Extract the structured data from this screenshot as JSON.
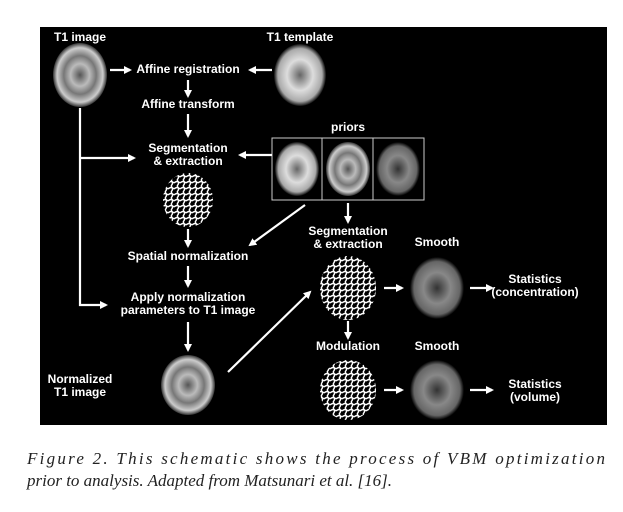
{
  "nodes": [
    {
      "lines": [
        "T1 image"
      ]
    },
    {
      "lines": [
        "T1 template"
      ]
    },
    {
      "lines": [
        "Affine registration"
      ]
    },
    {
      "lines": [
        "Affine transform"
      ]
    },
    {
      "lines": [
        "Segmentation",
        "& extraction"
      ]
    },
    {
      "lines": [
        "priors"
      ]
    },
    {
      "lines": [
        "Spatial normalization"
      ]
    },
    {
      "lines": [
        "Apply normalization",
        "parameters to T1 image"
      ]
    },
    {
      "lines": [
        "Normalized",
        "T1 image"
      ]
    },
    {
      "lines": [
        "Segmentation",
        "& extraction"
      ]
    },
    {
      "lines": [
        "Smooth"
      ]
    },
    {
      "lines": [
        "Statistics",
        "(concentration)"
      ]
    },
    {
      "lines": [
        "Modulation"
      ]
    },
    {
      "lines": [
        "Smooth"
      ]
    },
    {
      "lines": [
        "Statistics",
        "(volume)"
      ]
    }
  ],
  "caption": {
    "lines": [
      "Figure 2. This schematic shows the process of VBM optimization",
      "prior to analysis. Adapted from Matsunari et al. [16]."
    ]
  }
}
